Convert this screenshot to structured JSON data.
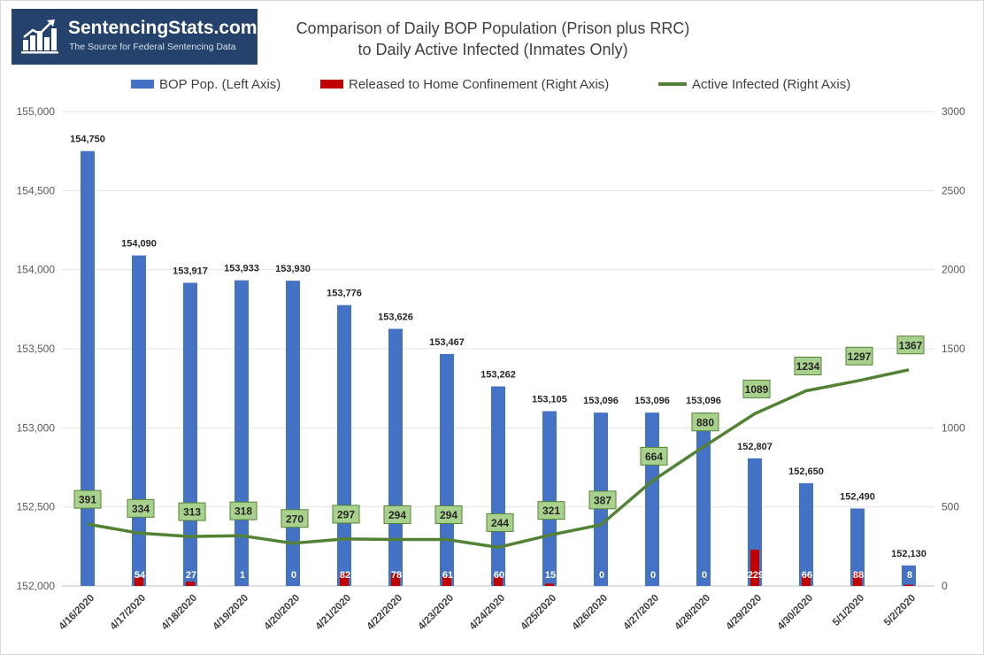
{
  "logo": {
    "name": "SentencingStats.com",
    "tagline": "The Source for Federal Sentencing Data"
  },
  "chart_data": {
    "type": "bar",
    "title_line1": "Comparison of Daily BOP Population (Prison plus RRC)",
    "title_line2": "to Daily Active Infected (Inmates Only)",
    "categories": [
      "4/16/2020",
      "4/17/2020",
      "4/18/2020",
      "4/19/2020",
      "4/20/2020",
      "4/21/2020",
      "4/22/2020",
      "4/23/2020",
      "4/24/2020",
      "4/25/2020",
      "4/26/2020",
      "4/27/2020",
      "4/28/2020",
      "4/29/2020",
      "4/30/2020",
      "5/1/2020",
      "5/2/2020"
    ],
    "series": [
      {
        "name": "BOP Pop. (Left Axis)",
        "type": "bar",
        "axis": "left",
        "color": "#4472c4",
        "values": [
          154750,
          154090,
          153917,
          153933,
          153930,
          153776,
          153626,
          153467,
          153262,
          153105,
          153096,
          153096,
          153096,
          152807,
          152650,
          152490,
          152130
        ],
        "labels": [
          "154,750",
          "154,090",
          "153,917",
          "153,933",
          "153,930",
          "153,776",
          "153,626",
          "153,467",
          "153,262",
          "153,105",
          "153,096",
          "153,096",
          "153,096",
          "152,807",
          "152,650",
          "152,490",
          "152,130"
        ]
      },
      {
        "name": "Released to Home Confinement (Right Axis)",
        "type": "bar",
        "axis": "right",
        "color": "#c00000",
        "values": [
          0,
          54,
          27,
          1,
          0,
          82,
          78,
          61,
          60,
          15,
          0,
          0,
          0,
          229,
          66,
          88,
          8
        ],
        "labels": [
          "",
          "54",
          "27",
          "1",
          "0",
          "82",
          "78",
          "61",
          "60",
          "15",
          "0",
          "0",
          "0",
          "229",
          "66",
          "88",
          "8"
        ]
      },
      {
        "name": "Active Infected (Right Axis)",
        "type": "line",
        "axis": "right",
        "color": "#548235",
        "values": [
          391,
          334,
          313,
          318,
          270,
          297,
          294,
          294,
          244,
          321,
          387,
          664,
          880,
          1089,
          1234,
          1297,
          1367
        ]
      }
    ],
    "left_axis": {
      "ylim": [
        152000,
        155000
      ],
      "ticks": [
        "155,000",
        "154,500",
        "154,000",
        "153,500",
        "153,000",
        "152,500",
        "152,000"
      ]
    },
    "right_axis": {
      "ylim": [
        0,
        3000
      ],
      "ticks": [
        "3000",
        "2500",
        "2000",
        "1500",
        "1000",
        "500",
        "0"
      ]
    },
    "grid": true,
    "legend_position": "top"
  }
}
